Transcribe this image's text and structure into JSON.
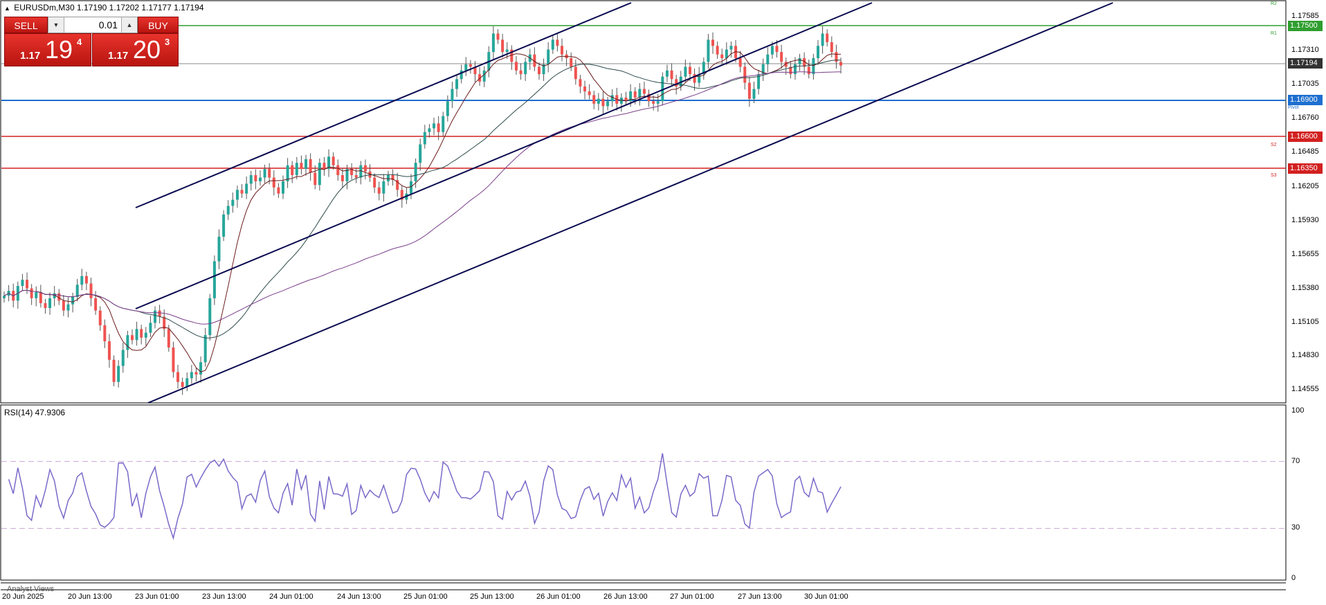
{
  "header": {
    "symbol_tf": "EURUSDm,M30",
    "ohlc": "1.17190 1.17202 1.17177 1.17194"
  },
  "trade_panel": {
    "sell_label": "SELL",
    "buy_label": "BUY",
    "lot": "0.01",
    "sell": {
      "small": "1.17",
      "big": "19",
      "sup": "4"
    },
    "buy": {
      "small": "1.17",
      "big": "20",
      "sup": "3"
    }
  },
  "price_axis": [
    "1.17585",
    "1.17310",
    "1.17035",
    "1.16760",
    "1.16485",
    "1.16205",
    "1.15930",
    "1.15655",
    "1.15380",
    "1.15105",
    "1.14830",
    "1.14555"
  ],
  "price_tags": {
    "r1": "1.17500",
    "current": "1.17194",
    "pivot": "1.16900",
    "s2": "1.16600",
    "s3": "1.16350"
  },
  "level_labels": {
    "r2": "R2",
    "r1": "R1",
    "pivot": "Pivot",
    "s2": "S2",
    "s3": "S3"
  },
  "rsi": {
    "label": "RSI(14) 47.9306",
    "axis": [
      "100",
      "70",
      "30",
      "0"
    ]
  },
  "time_axis": [
    "20 Jun 2025",
    "20 Jun 13:00",
    "23 Jun 01:00",
    "23 Jun 13:00",
    "24 Jun 01:00",
    "24 Jun 13:00",
    "25 Jun 01:00",
    "25 Jun 13:00",
    "26 Jun 01:00",
    "26 Jun 13:00",
    "27 Jun 01:00",
    "27 Jun 13:00",
    "30 Jun 01:00"
  ],
  "footer": {
    "analyst": "Analyst Views"
  },
  "colors": {
    "bull": "#26a69a",
    "bear": "#ef5350",
    "channel": "#0a0a50",
    "r1": "#2e9e2e",
    "pivot": "#1e6fd0",
    "support": "#d22020",
    "rsi": "#7b68c8"
  },
  "chart_data": {
    "type": "candlestick",
    "ylim": [
      1.1445,
      1.177
    ],
    "closes": [
      1.1532,
      1.1536,
      1.1528,
      1.154,
      1.1545,
      1.1538,
      1.153,
      1.1535,
      1.1526,
      1.1522,
      1.153,
      1.1534,
      1.1528,
      1.152,
      1.1525,
      1.1531,
      1.1541,
      1.1548,
      1.1542,
      1.153,
      1.152,
      1.1508,
      1.1495,
      1.148,
      1.1462,
      1.1475,
      1.1488,
      1.15,
      1.1496,
      1.1505,
      1.1498,
      1.1502,
      1.151,
      1.152,
      1.1515,
      1.1505,
      1.149,
      1.147,
      1.1462,
      1.1458,
      1.1465,
      1.147,
      1.1468,
      1.1478,
      1.15,
      1.153,
      1.156,
      1.158,
      1.1598,
      1.1605,
      1.161,
      1.1618,
      1.1615,
      1.1623,
      1.163,
      1.1625,
      1.1628,
      1.1635,
      1.1628,
      1.162,
      1.1615,
      1.1625,
      1.1638,
      1.163,
      1.164,
      1.1635,
      1.1643,
      1.1632,
      1.1622,
      1.164,
      1.1635,
      1.1645,
      1.1638,
      1.163,
      1.1625,
      1.1635,
      1.163,
      1.1628,
      1.1638,
      1.1633,
      1.1628,
      1.162,
      1.1615,
      1.1625,
      1.163,
      1.1626,
      1.1618,
      1.161,
      1.1615,
      1.1625,
      1.164,
      1.1655,
      1.1665,
      1.1668,
      1.1672,
      1.1665,
      1.1678,
      1.169,
      1.17,
      1.1708,
      1.1715,
      1.172,
      1.1718,
      1.1712,
      1.1706,
      1.1715,
      1.173,
      1.1745,
      1.174,
      1.173,
      1.1732,
      1.1722,
      1.1715,
      1.1712,
      1.1722,
      1.1728,
      1.1718,
      1.1712,
      1.172,
      1.1732,
      1.174,
      1.1735,
      1.1728,
      1.1725,
      1.1718,
      1.1708,
      1.1702,
      1.1698,
      1.1695,
      1.1688,
      1.1692,
      1.1686,
      1.169,
      1.1695,
      1.1688,
      1.1693,
      1.169,
      1.1698,
      1.1693,
      1.17,
      1.1696,
      1.169,
      1.1688,
      1.169,
      1.171,
      1.1715,
      1.1708,
      1.1702,
      1.171,
      1.1718,
      1.1712,
      1.1705,
      1.1712,
      1.1722,
      1.174,
      1.1735,
      1.1728,
      1.1725,
      1.1732,
      1.1735,
      1.1725,
      1.1718,
      1.1705,
      1.1692,
      1.17,
      1.1712,
      1.172,
      1.1728,
      1.1735,
      1.173,
      1.1722,
      1.1718,
      1.1712,
      1.172,
      1.1725,
      1.1718,
      1.1712,
      1.1725,
      1.1735,
      1.1745,
      1.1738,
      1.173,
      1.1722,
      1.1719
    ]
  }
}
